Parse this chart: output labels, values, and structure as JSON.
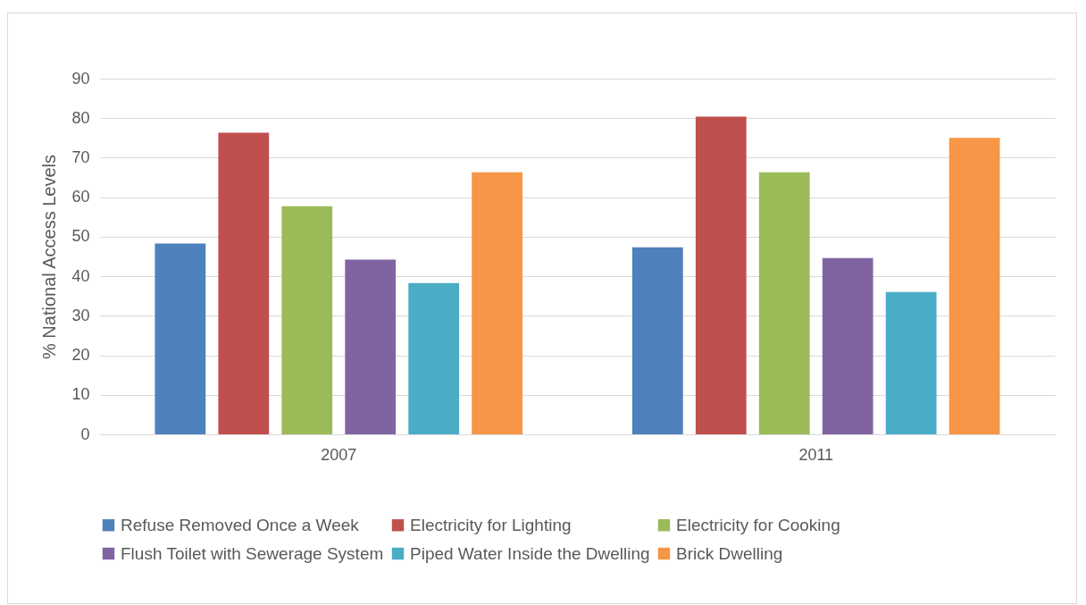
{
  "chart_data": {
    "type": "bar",
    "ylabel": "% National  Access Levels",
    "categories": [
      "2007",
      "2011"
    ],
    "series": [
      {
        "name": "Refuse Removed Once a Week",
        "color": "#4f81bd",
        "values": [
          48.3,
          47.3
        ]
      },
      {
        "name": "Electricity for Lighting",
        "color": "#c0504d",
        "values": [
          76.3,
          80.4
        ]
      },
      {
        "name": "Electricity for Cooking",
        "color": "#9bbb59",
        "values": [
          57.7,
          66.3
        ]
      },
      {
        "name": "Flush Toilet with Sewerage System",
        "color": "#8064a2",
        "values": [
          44.2,
          44.6
        ]
      },
      {
        "name": "Piped Water Inside the Dwelling",
        "color": "#4bacc6",
        "values": [
          38.3,
          36.0
        ]
      },
      {
        "name": "Brick Dwelling",
        "color": "#f79646",
        "values": [
          66.3,
          75.0
        ]
      }
    ],
    "ylim": [
      0,
      90
    ],
    "yticks": [
      0,
      10,
      20,
      30,
      40,
      50,
      60,
      70,
      80,
      90
    ],
    "grid": "y",
    "legend": "bottom"
  }
}
